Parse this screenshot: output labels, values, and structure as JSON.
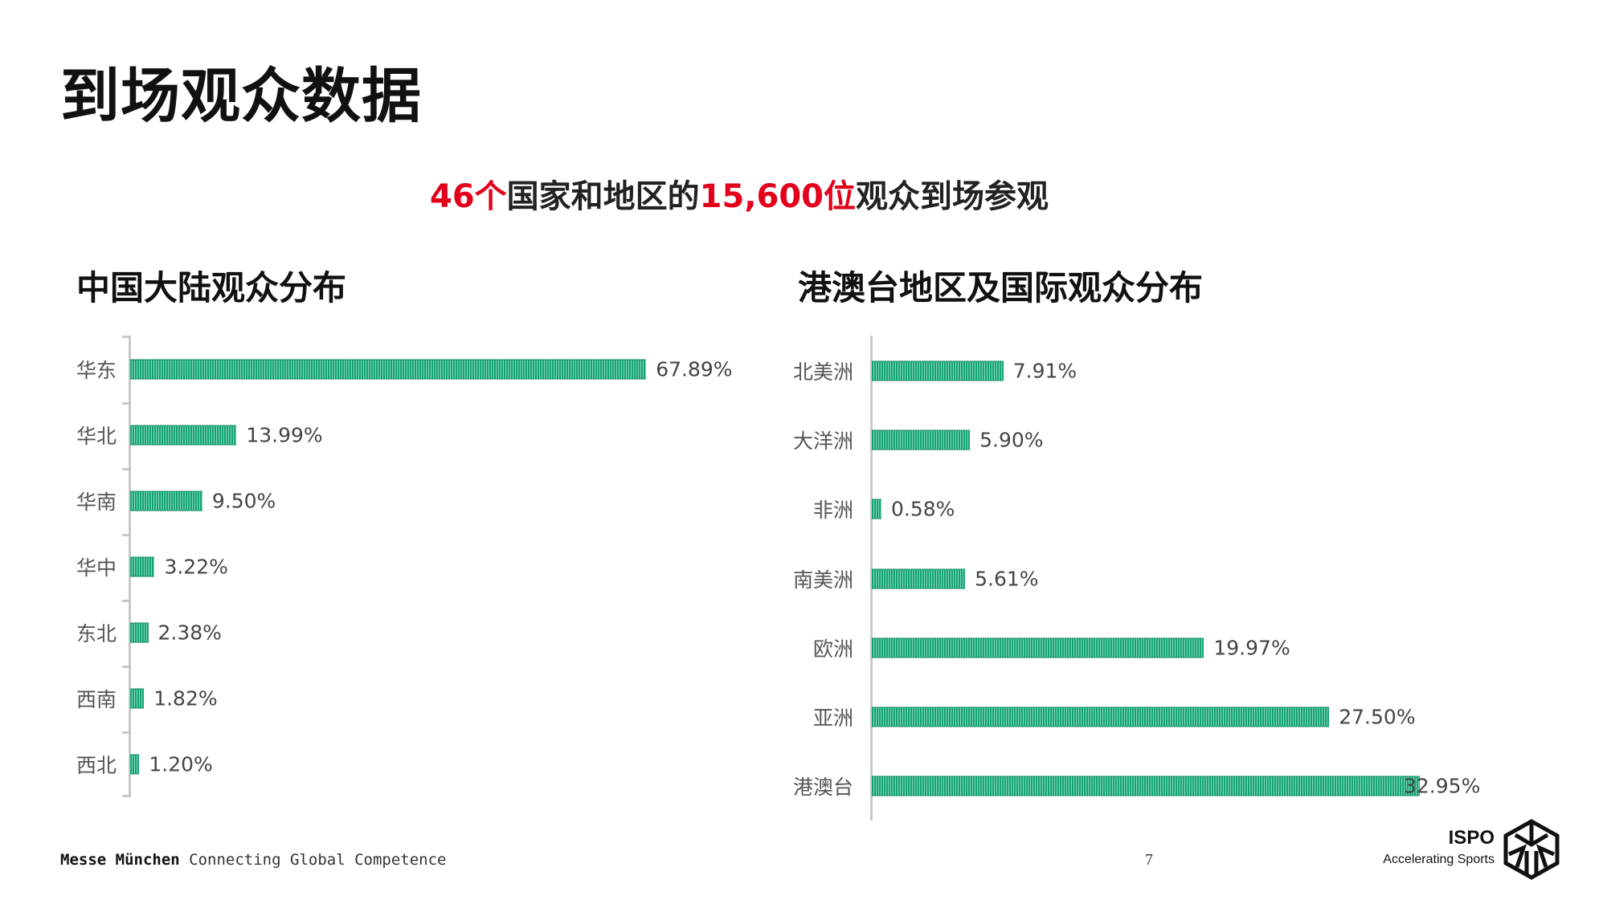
{
  "title": "到场观众数据",
  "subtitle": {
    "part1": "46个",
    "part2": "国家和地区的",
    "part3": "15,600位",
    "part4": "观众到场参观"
  },
  "colors": {
    "accent": "#e2001a",
    "bar": "#17a374"
  },
  "chart_data": [
    {
      "type": "bar",
      "title": "中国大陆观众分布",
      "orientation": "horizontal",
      "categories": [
        "华东",
        "华北",
        "华南",
        "华中",
        "东北",
        "西南",
        "西北"
      ],
      "values": [
        67.89,
        13.99,
        9.5,
        3.22,
        2.38,
        1.82,
        1.2
      ],
      "labels": [
        "67.89%",
        "13.99%",
        "9.50%",
        "3.22%",
        "2.38%",
        "1.82%",
        "1.20%"
      ],
      "unit": "%"
    },
    {
      "type": "bar",
      "title": "港澳台地区及国际观众分布",
      "orientation": "horizontal",
      "categories": [
        "北美洲",
        "大洋洲",
        "非洲",
        "南美洲",
        "欧洲",
        "亚洲",
        "港澳台"
      ],
      "values": [
        7.91,
        5.9,
        0.58,
        5.61,
        19.97,
        27.5,
        32.95
      ],
      "labels": [
        "7.91%",
        "5.90%",
        "0.58%",
        "5.61%",
        "19.97%",
        "27.50%",
        "32.95%"
      ],
      "unit": "%"
    }
  ],
  "footer": {
    "brand": "Messe München",
    "tagline": "Connecting Global Competence",
    "page": "7"
  },
  "logo": {
    "name": "ISPO",
    "tagline": "Accelerating Sports"
  }
}
